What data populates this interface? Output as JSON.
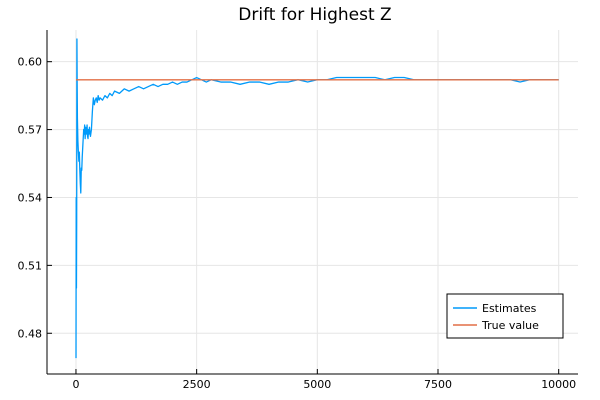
{
  "chart_data": {
    "type": "line",
    "title": "Drift for Highest Z",
    "xlabel": "",
    "ylabel": "",
    "xlim": [
      -600,
      10400
    ],
    "ylim": [
      0.462,
      0.614
    ],
    "xticks": [
      0,
      2500,
      5000,
      7500,
      10000
    ],
    "yticks": [
      0.48,
      0.51,
      0.54,
      0.57,
      0.6
    ],
    "xtick_labels": [
      "0",
      "2500",
      "5000",
      "7500",
      "10000"
    ],
    "ytick_labels": [
      "0.48",
      "0.51",
      "0.54",
      "0.57",
      "0.60"
    ],
    "grid": true,
    "legend_position": "bottom-right",
    "series": [
      {
        "name": "Estimates",
        "color": "#009AFA",
        "x": [
          1,
          5,
          10,
          15,
          20,
          25,
          30,
          40,
          50,
          60,
          70,
          80,
          90,
          100,
          110,
          120,
          130,
          140,
          150,
          160,
          170,
          180,
          190,
          200,
          210,
          220,
          230,
          240,
          250,
          260,
          270,
          280,
          290,
          300,
          320,
          340,
          360,
          380,
          400,
          420,
          440,
          460,
          480,
          500,
          550,
          600,
          650,
          700,
          750,
          800,
          900,
          1000,
          1100,
          1200,
          1300,
          1400,
          1500,
          1600,
          1700,
          1800,
          1900,
          2000,
          2100,
          2200,
          2300,
          2400,
          2500,
          2600,
          2700,
          2800,
          3000,
          3200,
          3400,
          3600,
          3800,
          4000,
          4200,
          4400,
          4600,
          4800,
          5000,
          5200,
          5400,
          5600,
          5800,
          6000,
          6200,
          6400,
          6600,
          6800,
          7000,
          7200,
          7400,
          7600,
          7800,
          8000,
          8200,
          8400,
          8600,
          8800,
          9000,
          9200,
          9400,
          9600,
          9800,
          10000
        ],
        "values": [
          0.469,
          0.54,
          0.5,
          0.53,
          0.61,
          0.59,
          0.575,
          0.565,
          0.56,
          0.556,
          0.56,
          0.552,
          0.546,
          0.542,
          0.553,
          0.552,
          0.558,
          0.562,
          0.566,
          0.57,
          0.568,
          0.572,
          0.566,
          0.571,
          0.57,
          0.568,
          0.572,
          0.567,
          0.566,
          0.57,
          0.568,
          0.571,
          0.569,
          0.567,
          0.57,
          0.578,
          0.584,
          0.581,
          0.583,
          0.584,
          0.582,
          0.585,
          0.583,
          0.584,
          0.583,
          0.585,
          0.584,
          0.586,
          0.585,
          0.587,
          0.586,
          0.588,
          0.587,
          0.588,
          0.589,
          0.588,
          0.589,
          0.59,
          0.589,
          0.59,
          0.59,
          0.591,
          0.59,
          0.591,
          0.591,
          0.592,
          0.593,
          0.592,
          0.591,
          0.592,
          0.591,
          0.591,
          0.59,
          0.591,
          0.591,
          0.59,
          0.591,
          0.591,
          0.592,
          0.591,
          0.592,
          0.592,
          0.593,
          0.593,
          0.593,
          0.593,
          0.593,
          0.592,
          0.593,
          0.593,
          0.592,
          0.592,
          0.592,
          0.592,
          0.592,
          0.592,
          0.592,
          0.592,
          0.592,
          0.592,
          0.592,
          0.591,
          0.592,
          0.592,
          0.592,
          0.592
        ]
      },
      {
        "name": "True value",
        "color": "#E26F46",
        "x": [
          1,
          10000
        ],
        "values": [
          0.592,
          0.592
        ]
      }
    ]
  }
}
